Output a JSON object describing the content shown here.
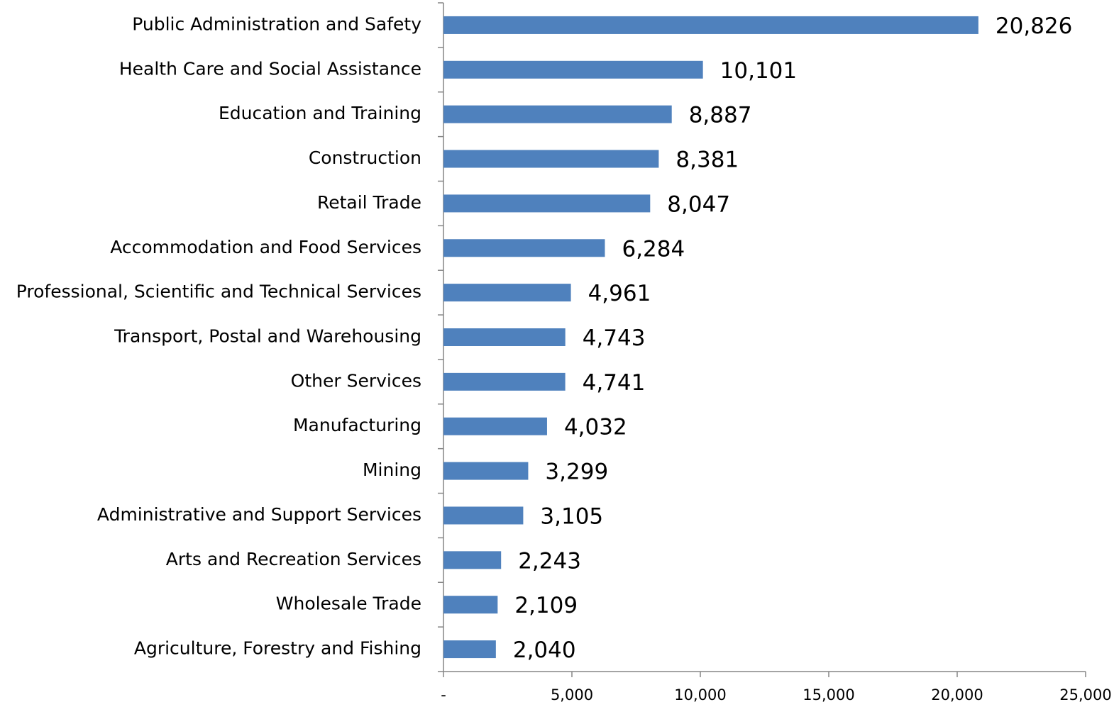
{
  "chart_data": {
    "type": "bar",
    "orientation": "horizontal",
    "categories": [
      "Public Administration and Safety",
      "Health Care and Social Assistance",
      "Education and Training",
      "Construction",
      "Retail Trade",
      "Accommodation and Food Services",
      "Professional, Scientific and Technical Services",
      "Transport, Postal and Warehousing",
      "Other Services",
      "Manufacturing",
      "Mining",
      "Administrative and Support Services",
      "Arts and Recreation Services",
      "Wholesale Trade",
      "Agriculture, Forestry and Fishing"
    ],
    "values": [
      20826,
      10101,
      8887,
      8381,
      8047,
      6284,
      4961,
      4743,
      4741,
      4032,
      3299,
      3105,
      2243,
      2109,
      2040
    ],
    "value_labels": [
      "20,826",
      "10,101",
      "8,887",
      "8,381",
      "8,047",
      "6,284",
      "4,961",
      "4,743",
      "4,741",
      "4,032",
      "3,299",
      "3,105",
      "2,243",
      "2,109",
      "2,040"
    ],
    "color": "#4f81bd",
    "xlim": [
      0,
      25000
    ],
    "xticks": [
      {
        "value": 0,
        "label": "-"
      },
      {
        "value": 5000,
        "label": "5,000"
      },
      {
        "value": 10000,
        "label": "10,000"
      },
      {
        "value": 15000,
        "label": "15,000"
      },
      {
        "value": 20000,
        "label": "20,000"
      },
      {
        "value": 25000,
        "label": "25,000"
      }
    ],
    "grid": false
  }
}
